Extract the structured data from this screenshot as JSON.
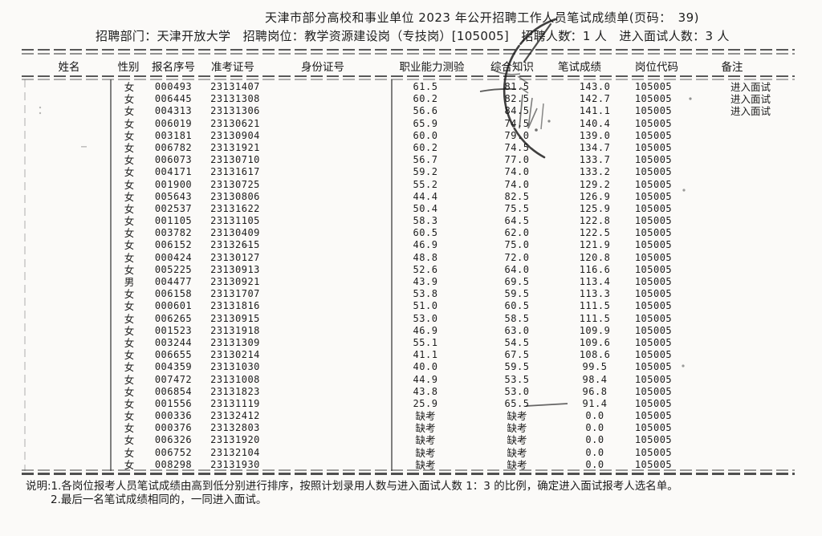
{
  "header": {
    "title": "天津市部分高校和事业单位 2023 年公开招聘工作人员笔试成绩单(页码：　39)",
    "subtitle": "招聘部门：天津开放大学　招聘岗位：教学资源建设岗（专技岗）[105005]　招聘人数：1 人　进入面试人数：3 人"
  },
  "table": {
    "columns": [
      "姓名",
      "性别",
      "报名序号",
      "准考证号",
      "身份证号",
      "职业能力测验",
      "综合知识",
      "笔试成绩",
      "岗位代码",
      "备注"
    ],
    "rows": [
      [
        "",
        "女",
        "000493",
        "23131407",
        "",
        "61.5",
        "81.5",
        "143.0",
        "105005",
        "进入面试"
      ],
      [
        "",
        "女",
        "006445",
        "23131308",
        "",
        "60.2",
        "82.5",
        "142.7",
        "105005",
        "进入面试"
      ],
      [
        "",
        "女",
        "004313",
        "23131306",
        "",
        "56.6",
        "84.5",
        "141.1",
        "105005",
        "进入面试"
      ],
      [
        "",
        "女",
        "006019",
        "23130621",
        "",
        "65.9",
        "74.5",
        "140.4",
        "105005",
        ""
      ],
      [
        "",
        "女",
        "003181",
        "23130904",
        "",
        "60.0",
        "79.0",
        "139.0",
        "105005",
        ""
      ],
      [
        "",
        "女",
        "006782",
        "23131921",
        "",
        "60.2",
        "74.5",
        "134.7",
        "105005",
        ""
      ],
      [
        "",
        "女",
        "006073",
        "23130710",
        "",
        "56.7",
        "77.0",
        "133.7",
        "105005",
        ""
      ],
      [
        "",
        "女",
        "004171",
        "23131617",
        "",
        "59.2",
        "74.0",
        "133.2",
        "105005",
        ""
      ],
      [
        "",
        "女",
        "001900",
        "23130725",
        "",
        "55.2",
        "74.0",
        "129.2",
        "105005",
        ""
      ],
      [
        "",
        "女",
        "005643",
        "23130806",
        "",
        "44.4",
        "82.5",
        "126.9",
        "105005",
        ""
      ],
      [
        "",
        "女",
        "002537",
        "23131622",
        "",
        "50.4",
        "75.5",
        "125.9",
        "105005",
        ""
      ],
      [
        "",
        "女",
        "001105",
        "23131105",
        "",
        "58.3",
        "64.5",
        "122.8",
        "105005",
        ""
      ],
      [
        "",
        "女",
        "003782",
        "23130409",
        "",
        "60.5",
        "62.0",
        "122.5",
        "105005",
        ""
      ],
      [
        "",
        "女",
        "006152",
        "23132615",
        "",
        "46.9",
        "75.0",
        "121.9",
        "105005",
        ""
      ],
      [
        "",
        "女",
        "000424",
        "23130127",
        "",
        "48.8",
        "72.0",
        "120.8",
        "105005",
        ""
      ],
      [
        "",
        "女",
        "005225",
        "23130913",
        "",
        "52.6",
        "64.0",
        "116.6",
        "105005",
        ""
      ],
      [
        "",
        "男",
        "004477",
        "23130921",
        "",
        "43.9",
        "69.5",
        "113.4",
        "105005",
        ""
      ],
      [
        "",
        "女",
        "006158",
        "23131707",
        "",
        "53.8",
        "59.5",
        "113.3",
        "105005",
        ""
      ],
      [
        "",
        "女",
        "000601",
        "23131816",
        "",
        "51.0",
        "60.5",
        "111.5",
        "105005",
        ""
      ],
      [
        "",
        "女",
        "006265",
        "23130915",
        "",
        "53.0",
        "58.5",
        "111.5",
        "105005",
        ""
      ],
      [
        "",
        "女",
        "001523",
        "23131918",
        "",
        "46.9",
        "63.0",
        "109.9",
        "105005",
        ""
      ],
      [
        "",
        "女",
        "003244",
        "23131309",
        "",
        "55.1",
        "54.5",
        "109.6",
        "105005",
        ""
      ],
      [
        "",
        "女",
        "006655",
        "23130214",
        "",
        "41.1",
        "67.5",
        "108.6",
        "105005",
        ""
      ],
      [
        "",
        "女",
        "004359",
        "23131030",
        "",
        "40.0",
        "59.5",
        "99.5",
        "105005",
        ""
      ],
      [
        "",
        "女",
        "007472",
        "23131008",
        "",
        "44.9",
        "53.5",
        "98.4",
        "105005",
        ""
      ],
      [
        "",
        "女",
        "006854",
        "23131823",
        "",
        "43.8",
        "53.0",
        "96.8",
        "105005",
        ""
      ],
      [
        "",
        "女",
        "001556",
        "23131119",
        "",
        "25.9",
        "65.5",
        "91.4",
        "105005",
        ""
      ],
      [
        "",
        "女",
        "000336",
        "23132412",
        "",
        "缺考",
        "缺考",
        "0.0",
        "105005",
        ""
      ],
      [
        "",
        "女",
        "000376",
        "23132803",
        "",
        "缺考",
        "缺考",
        "0.0",
        "105005",
        ""
      ],
      [
        "",
        "女",
        "006326",
        "23131920",
        "",
        "缺考",
        "缺考",
        "0.0",
        "105005",
        ""
      ],
      [
        "",
        "女",
        "006752",
        "23132104",
        "",
        "缺考",
        "缺考",
        "0.0",
        "105005",
        ""
      ],
      [
        "",
        "女",
        "008298",
        "23131930",
        "",
        "缺考",
        "缺考",
        "0.0",
        "105005",
        ""
      ]
    ]
  },
  "notes": {
    "line1": "说明:1.各岗位报考人员笔试成绩由高到低分别进行排序，按照计划录用人数与进入面试人数 1：3 的比例，确定进入面试报考人选名单。",
    "line2": "2.最后一名笔试成绩相同的，一同进入面试。"
  },
  "stamp": {
    "kind": "circular-ink-stamp",
    "color": "#161616"
  },
  "colors": {
    "paper": "#fbfaf8",
    "ink": "#242424",
    "rule": "#3c3c3c"
  }
}
